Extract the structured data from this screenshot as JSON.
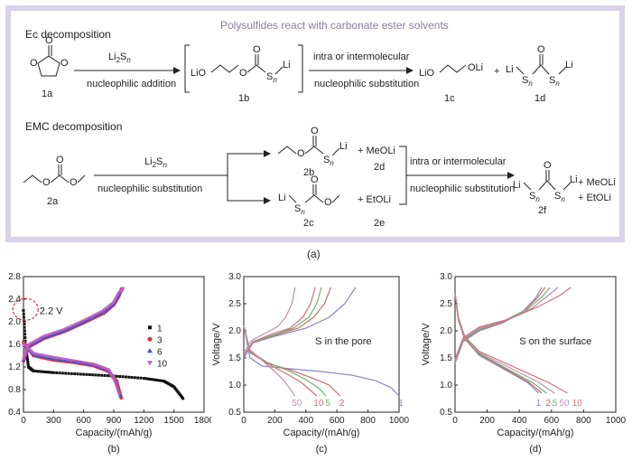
{
  "scheme": {
    "title": "Polysulfides react with carbonate ester solvents",
    "ec_heading": "Ec decomposition",
    "emc_heading": "EMC decomposition",
    "reagent_base": "Li",
    "reagent_sub1": "2",
    "reagent_s": "S",
    "reagent_sub2": "n",
    "step_nuc_add": "nucleophilic addition",
    "step_intra": "intra or intermolecular",
    "step_nuc_sub": "nucleophilic substitution",
    "cmp_1a": "1a",
    "cmp_1b": "1b",
    "cmp_1c": "1c",
    "cmp_1d": "1d",
    "cmp_2a": "2a",
    "cmp_2b": "2b",
    "cmp_2c": "2c",
    "cmp_2d": "2d",
    "cmp_2e": "2e",
    "cmp_2f": "2f",
    "meoli": "+ MeOLi",
    "etoli": "+ EtOLi",
    "plus": "+",
    "lio": "LiO",
    "oli": "OLi",
    "li": "Li",
    "s": "S",
    "n": "n",
    "o": "O",
    "caption": "(a)"
  },
  "chart_data": [
    {
      "type": "scatter",
      "panel": "(b)",
      "xlabel": "Capacity/(mAh/g)",
      "ylabel": "",
      "xlim": [
        0,
        1800
      ],
      "ylim": [
        0.4,
        2.8
      ],
      "xticks": [
        "0",
        "300",
        "600",
        "900",
        "1200",
        "1500",
        "1800"
      ],
      "yticks": [
        "0.4",
        "0.8",
        "1.2",
        "1.6",
        "2.0",
        "2.4",
        "2.8"
      ],
      "annotation": "2.2 V",
      "legend_placement": "right",
      "series": [
        {
          "name": "1",
          "color": "#111111",
          "marker": "square",
          "discharge": [
            [
              0,
              2.2
            ],
            [
              20,
              1.6
            ],
            [
              50,
              1.2
            ],
            [
              100,
              1.13
            ],
            [
              300,
              1.1
            ],
            [
              600,
              1.07
            ],
            [
              900,
              1.04
            ],
            [
              1200,
              1.0
            ],
            [
              1400,
              0.95
            ],
            [
              1500,
              0.85
            ],
            [
              1600,
              0.62
            ]
          ],
          "charge": []
        },
        {
          "name": "3",
          "color": "#e0303a",
          "marker": "circle",
          "discharge": [
            [
              0,
              1.65
            ],
            [
              100,
              1.4
            ],
            [
              300,
              1.32
            ],
            [
              500,
              1.28
            ],
            [
              700,
              1.22
            ],
            [
              850,
              1.12
            ],
            [
              930,
              0.95
            ],
            [
              980,
              0.62
            ]
          ],
          "charge": [
            [
              0,
              1.3
            ],
            [
              50,
              1.55
            ],
            [
              200,
              1.7
            ],
            [
              400,
              1.82
            ],
            [
              600,
              1.98
            ],
            [
              800,
              2.15
            ],
            [
              900,
              2.3
            ],
            [
              950,
              2.45
            ],
            [
              980,
              2.6
            ]
          ]
        },
        {
          "name": "6",
          "color": "#3a57c4",
          "marker": "triangle",
          "discharge": [
            [
              0,
              1.62
            ],
            [
              100,
              1.42
            ],
            [
              300,
              1.35
            ],
            [
              500,
              1.3
            ],
            [
              700,
              1.24
            ],
            [
              850,
              1.14
            ],
            [
              920,
              0.95
            ],
            [
              970,
              0.65
            ]
          ],
          "charge": [
            [
              0,
              1.32
            ],
            [
              50,
              1.57
            ],
            [
              200,
              1.72
            ],
            [
              400,
              1.84
            ],
            [
              600,
              2.0
            ],
            [
              800,
              2.18
            ],
            [
              900,
              2.32
            ],
            [
              950,
              2.48
            ],
            [
              990,
              2.6
            ]
          ]
        },
        {
          "name": "10",
          "color": "#c05ac8",
          "marker": "triangle-down",
          "discharge": [
            [
              0,
              1.6
            ],
            [
              100,
              1.44
            ],
            [
              300,
              1.37
            ],
            [
              500,
              1.31
            ],
            [
              700,
              1.25
            ],
            [
              850,
              1.15
            ],
            [
              910,
              0.95
            ],
            [
              960,
              0.68
            ]
          ],
          "charge": [
            [
              0,
              1.34
            ],
            [
              50,
              1.59
            ],
            [
              200,
              1.74
            ],
            [
              400,
              1.86
            ],
            [
              600,
              2.02
            ],
            [
              800,
              2.2
            ],
            [
              900,
              2.34
            ],
            [
              950,
              2.5
            ],
            [
              1000,
              2.6
            ]
          ]
        }
      ]
    },
    {
      "type": "line",
      "panel": "(c)",
      "xlabel": "Capacity/(mAh/g)",
      "ylabel": "Voltage/V",
      "xlim": [
        0,
        1000
      ],
      "ylim": [
        0.5,
        3.0
      ],
      "xticks": [
        "0",
        "200",
        "400",
        "600",
        "800",
        "1000"
      ],
      "yticks": [
        "0.5",
        "1.0",
        "1.5",
        "2.0",
        "2.5",
        "3.0"
      ],
      "annotation": "S in the pore",
      "series": [
        {
          "name": "1",
          "color": "#8a84c0",
          "discharge": [
            [
              0,
              2.1
            ],
            [
              40,
              1.5
            ],
            [
              120,
              1.35
            ],
            [
              300,
              1.3
            ],
            [
              500,
              1.25
            ],
            [
              700,
              1.18
            ],
            [
              850,
              1.08
            ],
            [
              950,
              0.95
            ],
            [
              1000,
              0.8
            ]
          ],
          "charge": [
            [
              0,
              1.5
            ],
            [
              60,
              1.78
            ],
            [
              200,
              1.9
            ],
            [
              400,
              2.05
            ],
            [
              550,
              2.25
            ],
            [
              650,
              2.5
            ],
            [
              720,
              2.8
            ]
          ]
        },
        {
          "name": "2",
          "color": "#c07070",
          "discharge": [
            [
              0,
              2.1
            ],
            [
              40,
              1.6
            ],
            [
              150,
              1.4
            ],
            [
              300,
              1.28
            ],
            [
              450,
              1.12
            ],
            [
              550,
              1.0
            ],
            [
              620,
              0.8
            ]
          ],
          "charge": [
            [
              0,
              1.55
            ],
            [
              60,
              1.8
            ],
            [
              200,
              1.92
            ],
            [
              350,
              2.05
            ],
            [
              450,
              2.25
            ],
            [
              520,
              2.5
            ],
            [
              560,
              2.8
            ]
          ]
        },
        {
          "name": "5",
          "color": "#70b070",
          "discharge": [
            [
              0,
              2.1
            ],
            [
              40,
              1.62
            ],
            [
              150,
              1.42
            ],
            [
              300,
              1.25
            ],
            [
              400,
              1.1
            ],
            [
              480,
              0.95
            ],
            [
              530,
              0.8
            ]
          ],
          "charge": [
            [
              0,
              1.55
            ],
            [
              60,
              1.8
            ],
            [
              200,
              1.93
            ],
            [
              320,
              2.05
            ],
            [
              420,
              2.25
            ],
            [
              470,
              2.5
            ],
            [
              500,
              2.8
            ]
          ]
        },
        {
          "name": "10",
          "color": "#d07078",
          "discharge": [
            [
              0,
              2.1
            ],
            [
              40,
              1.64
            ],
            [
              150,
              1.4
            ],
            [
              280,
              1.2
            ],
            [
              370,
              1.05
            ],
            [
              430,
              0.9
            ],
            [
              470,
              0.8
            ]
          ],
          "charge": [
            [
              0,
              1.55
            ],
            [
              60,
              1.8
            ],
            [
              180,
              1.94
            ],
            [
              300,
              2.05
            ],
            [
              380,
              2.25
            ],
            [
              430,
              2.5
            ],
            [
              460,
              2.8
            ]
          ]
        },
        {
          "name": "50",
          "color": "#c090b0",
          "discharge": [
            [
              0,
              2.1
            ],
            [
              40,
              1.65
            ],
            [
              120,
              1.45
            ],
            [
              200,
              1.25
            ],
            [
              260,
              1.08
            ],
            [
              300,
              0.92
            ],
            [
              330,
              0.8
            ]
          ],
          "charge": [
            [
              0,
              1.6
            ],
            [
              50,
              1.82
            ],
            [
              140,
              1.96
            ],
            [
              220,
              2.08
            ],
            [
              270,
              2.25
            ],
            [
              310,
              2.5
            ],
            [
              330,
              2.8
            ]
          ]
        }
      ]
    },
    {
      "type": "line",
      "panel": "(d)",
      "xlabel": "Capacity/(mAh/g)",
      "ylabel": "Voltage/V",
      "xlim": [
        0,
        1000
      ],
      "ylim": [
        0.5,
        3.0
      ],
      "xticks": [
        "0",
        "200",
        "400",
        "600",
        "800",
        "1000"
      ],
      "yticks": [
        "0.5",
        "1.0",
        "1.5",
        "2.0",
        "2.5",
        "3.0"
      ],
      "annotation": "S on the surface",
      "series": [
        {
          "name": "1",
          "color": "#8a84c0",
          "discharge": [
            [
              0,
              2.7
            ],
            [
              20,
              2.2
            ],
            [
              60,
              1.85
            ],
            [
              150,
              1.55
            ],
            [
              300,
              1.3
            ],
            [
              450,
              1.05
            ],
            [
              520,
              0.85
            ]
          ],
          "charge": [
            [
              0,
              1.4
            ],
            [
              50,
              1.8
            ],
            [
              150,
              2.0
            ],
            [
              300,
              2.15
            ],
            [
              420,
              2.35
            ],
            [
              500,
              2.6
            ],
            [
              540,
              2.8
            ]
          ]
        },
        {
          "name": "2",
          "color": "#c07070",
          "discharge": [
            [
              0,
              2.7
            ],
            [
              20,
              2.2
            ],
            [
              60,
              1.85
            ],
            [
              150,
              1.57
            ],
            [
              300,
              1.32
            ],
            [
              460,
              1.05
            ],
            [
              540,
              0.85
            ]
          ],
          "charge": [
            [
              0,
              1.42
            ],
            [
              50,
              1.82
            ],
            [
              150,
              2.02
            ],
            [
              300,
              2.17
            ],
            [
              430,
              2.37
            ],
            [
              510,
              2.6
            ],
            [
              560,
              2.8
            ]
          ]
        },
        {
          "name": "5",
          "color": "#70b070",
          "discharge": [
            [
              0,
              2.7
            ],
            [
              20,
              2.22
            ],
            [
              60,
              1.86
            ],
            [
              150,
              1.58
            ],
            [
              300,
              1.34
            ],
            [
              480,
              1.05
            ],
            [
              570,
              0.85
            ]
          ],
          "charge": [
            [
              0,
              1.44
            ],
            [
              50,
              1.83
            ],
            [
              150,
              2.03
            ],
            [
              300,
              2.18
            ],
            [
              450,
              2.4
            ],
            [
              540,
              2.62
            ],
            [
              590,
              2.8
            ]
          ]
        },
        {
          "name": "50",
          "color": "#c090b0",
          "discharge": [
            [
              0,
              2.7
            ],
            [
              20,
              2.24
            ],
            [
              60,
              1.88
            ],
            [
              150,
              1.6
            ],
            [
              320,
              1.35
            ],
            [
              520,
              1.05
            ],
            [
              620,
              0.85
            ]
          ],
          "charge": [
            [
              0,
              1.46
            ],
            [
              50,
              1.85
            ],
            [
              150,
              2.05
            ],
            [
              320,
              2.2
            ],
            [
              480,
              2.42
            ],
            [
              580,
              2.65
            ],
            [
              640,
              2.8
            ]
          ]
        },
        {
          "name": "10",
          "color": "#d07078",
          "discharge": [
            [
              0,
              2.7
            ],
            [
              20,
              2.25
            ],
            [
              60,
              1.9
            ],
            [
              150,
              1.62
            ],
            [
              340,
              1.37
            ],
            [
              580,
              1.05
            ],
            [
              700,
              0.85
            ]
          ],
          "charge": [
            [
              0,
              1.48
            ],
            [
              50,
              1.87
            ],
            [
              150,
              2.07
            ],
            [
              340,
              2.22
            ],
            [
              520,
              2.45
            ],
            [
              650,
              2.65
            ],
            [
              720,
              2.8
            ]
          ]
        }
      ]
    }
  ]
}
